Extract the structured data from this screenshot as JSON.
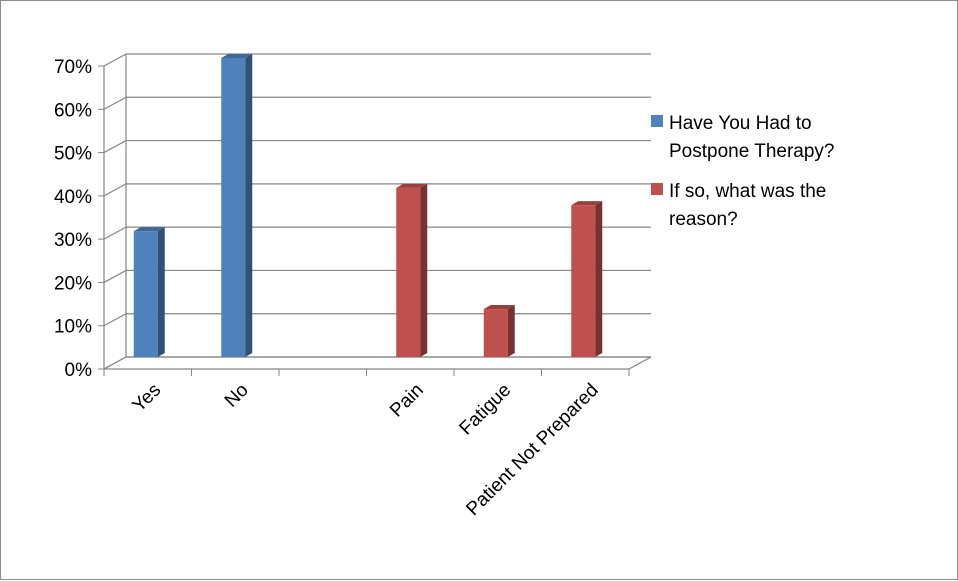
{
  "chart_data": {
    "type": "bar",
    "style": "3d-clustered-column",
    "categories": [
      "Yes",
      "No",
      "",
      "Pain",
      "Fatigue",
      "Patient Not Prepared"
    ],
    "series": [
      {
        "name": "Have You Had to Postpone Therapy?",
        "color": "#4f81bd",
        "values": [
          30,
          70,
          null,
          null,
          null,
          null
        ]
      },
      {
        "name": "If so, what was the reason?",
        "color": "#c0504d",
        "values": [
          null,
          null,
          null,
          40,
          12,
          36
        ]
      }
    ],
    "y_ticks": [
      "0%",
      "10%",
      "20%",
      "30%",
      "40%",
      "50%",
      "60%",
      "70%"
    ],
    "ylim": [
      0,
      70
    ],
    "y_unit": "%",
    "grid": true,
    "legend_position": "right",
    "legend": {
      "entries": [
        {
          "lines": [
            "Have You Had to",
            "Postpone Therapy?"
          ],
          "color": "#4f81bd"
        },
        {
          "lines": [
            "If so, what was the",
            "reason?"
          ],
          "color": "#c0504d"
        }
      ]
    }
  }
}
